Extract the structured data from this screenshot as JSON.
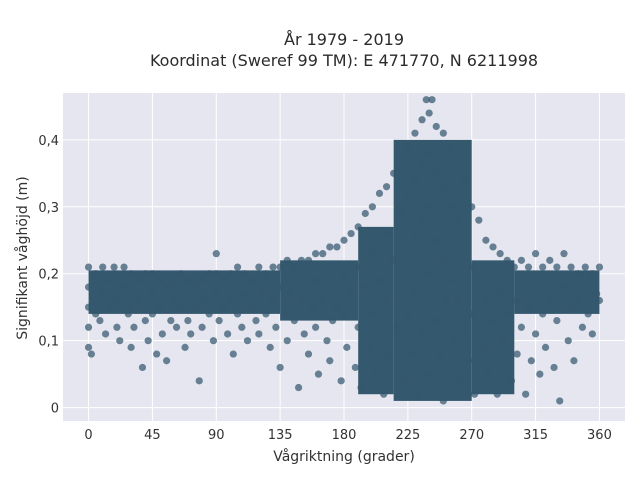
{
  "chart_data": {
    "type": "scatter",
    "title": "År 1979 - 2019",
    "subtitle": "Koordinat (Sweref 99 TM): E 471770, N 6211998",
    "xlabel": "Vågriktning (grader)",
    "ylabel": "Signifikant våghöjd (m)",
    "xlim": [
      -18,
      378
    ],
    "ylim": [
      -0.02,
      0.47
    ],
    "xticks": [
      0,
      45,
      90,
      135,
      180,
      225,
      270,
      315,
      360
    ],
    "xtick_labels": [
      "0",
      "45",
      "90",
      "135",
      "180",
      "225",
      "270",
      "315",
      "360"
    ],
    "yticks": [
      0,
      0.1,
      0.2,
      0.3,
      0.4
    ],
    "ytick_labels": [
      "0",
      "0,1",
      "0,2",
      "0,3",
      "0,4"
    ],
    "grid": true,
    "marker_color": "#34586e",
    "background_color": "#e5e6ef",
    "series": [
      {
        "points": [
          [
            0,
            0.21
          ],
          [
            0,
            0.18
          ],
          [
            0,
            0.15
          ],
          [
            0,
            0.12
          ],
          [
            0,
            0.09
          ],
          [
            2,
            0.08
          ],
          [
            5,
            0.2
          ],
          [
            5,
            0.14
          ],
          [
            8,
            0.13
          ],
          [
            10,
            0.21
          ],
          [
            10,
            0.17
          ],
          [
            12,
            0.11
          ],
          [
            15,
            0.19
          ],
          [
            15,
            0.15
          ],
          [
            18,
            0.21
          ],
          [
            20,
            0.16
          ],
          [
            20,
            0.12
          ],
          [
            22,
            0.1
          ],
          [
            25,
            0.21
          ],
          [
            25,
            0.18
          ],
          [
            28,
            0.14
          ],
          [
            30,
            0.2
          ],
          [
            30,
            0.15
          ],
          [
            30,
            0.09
          ],
          [
            32,
            0.12
          ],
          [
            35,
            0.19
          ],
          [
            35,
            0.16
          ],
          [
            38,
            0.06
          ],
          [
            40,
            0.2
          ],
          [
            40,
            0.13
          ],
          [
            42,
            0.1
          ],
          [
            45,
            0.2
          ],
          [
            45,
            0.17
          ],
          [
            45,
            0.14
          ],
          [
            48,
            0.08
          ],
          [
            50,
            0.19
          ],
          [
            50,
            0.15
          ],
          [
            52,
            0.11
          ],
          [
            55,
            0.18
          ],
          [
            55,
            0.07
          ],
          [
            58,
            0.13
          ],
          [
            60,
            0.19
          ],
          [
            60,
            0.16
          ],
          [
            62,
            0.12
          ],
          [
            65,
            0.2
          ],
          [
            65,
            0.15
          ],
          [
            68,
            0.09
          ],
          [
            70,
            0.19
          ],
          [
            70,
            0.13
          ],
          [
            72,
            0.11
          ],
          [
            75,
            0.18
          ],
          [
            75,
            0.15
          ],
          [
            78,
            0.04
          ],
          [
            80,
            0.19
          ],
          [
            80,
            0.12
          ],
          [
            82,
            0.16
          ],
          [
            85,
            0.2
          ],
          [
            85,
            0.14
          ],
          [
            88,
            0.1
          ],
          [
            90,
            0.23
          ],
          [
            90,
            0.2
          ],
          [
            90,
            0.17
          ],
          [
            92,
            0.13
          ],
          [
            95,
            0.19
          ],
          [
            95,
            0.15
          ],
          [
            98,
            0.11
          ],
          [
            100,
            0.2
          ],
          [
            100,
            0.16
          ],
          [
            102,
            0.08
          ],
          [
            105,
            0.21
          ],
          [
            105,
            0.14
          ],
          [
            108,
            0.12
          ],
          [
            110,
            0.2
          ],
          [
            110,
            0.17
          ],
          [
            112,
            0.1
          ],
          [
            115,
            0.19
          ],
          [
            115,
            0.15
          ],
          [
            118,
            0.13
          ],
          [
            120,
            0.21
          ],
          [
            120,
            0.11
          ],
          [
            122,
            0.17
          ],
          [
            125,
            0.2
          ],
          [
            125,
            0.14
          ],
          [
            128,
            0.09
          ],
          [
            130,
            0.21
          ],
          [
            130,
            0.16
          ],
          [
            132,
            0.12
          ],
          [
            135,
            0.21
          ],
          [
            135,
            0.18
          ],
          [
            135,
            0.06
          ],
          [
            138,
            0.14
          ],
          [
            140,
            0.22
          ],
          [
            140,
            0.1
          ],
          [
            142,
            0.17
          ],
          [
            145,
            0.21
          ],
          [
            145,
            0.13
          ],
          [
            148,
            0.03
          ],
          [
            150,
            0.22
          ],
          [
            150,
            0.16
          ],
          [
            152,
            0.11
          ],
          [
            155,
            0.22
          ],
          [
            155,
            0.08
          ],
          [
            158,
            0.15
          ],
          [
            160,
            0.23
          ],
          [
            160,
            0.19
          ],
          [
            160,
            0.12
          ],
          [
            162,
            0.05
          ],
          [
            165,
            0.23
          ],
          [
            165,
            0.16
          ],
          [
            168,
            0.1
          ],
          [
            170,
            0.24
          ],
          [
            170,
            0.19
          ],
          [
            170,
            0.07
          ],
          [
            172,
            0.13
          ],
          [
            175,
            0.24
          ],
          [
            175,
            0.15
          ],
          [
            178,
            0.04
          ],
          [
            180,
            0.25
          ],
          [
            180,
            0.2
          ],
          [
            180,
            0.14
          ],
          [
            182,
            0.09
          ],
          [
            185,
            0.26
          ],
          [
            185,
            0.17
          ],
          [
            188,
            0.06
          ],
          [
            190,
            0.27
          ],
          [
            190,
            0.21
          ],
          [
            190,
            0.12
          ],
          [
            192,
            0.03
          ],
          [
            195,
            0.29
          ],
          [
            195,
            0.18
          ],
          [
            198,
            0.09
          ],
          [
            200,
            0.3
          ],
          [
            200,
            0.23
          ],
          [
            200,
            0.14
          ],
          [
            202,
            0.05
          ],
          [
            205,
            0.32
          ],
          [
            205,
            0.19
          ],
          [
            208,
            0.02
          ],
          [
            210,
            0.33
          ],
          [
            210,
            0.26
          ],
          [
            210,
            0.16
          ],
          [
            212,
            0.08
          ],
          [
            215,
            0.35
          ],
          [
            215,
            0.22
          ],
          [
            218,
            0.12
          ],
          [
            220,
            0.37
          ],
          [
            220,
            0.29
          ],
          [
            220,
            0.18
          ],
          [
            222,
            0.04
          ],
          [
            225,
            0.39
          ],
          [
            225,
            0.32
          ],
          [
            225,
            0.24
          ],
          [
            225,
            0.14
          ],
          [
            228,
            0.08
          ],
          [
            230,
            0.41
          ],
          [
            230,
            0.34
          ],
          [
            230,
            0.26
          ],
          [
            230,
            0.17
          ],
          [
            232,
            0.02
          ],
          [
            235,
            0.43
          ],
          [
            235,
            0.36
          ],
          [
            235,
            0.28
          ],
          [
            235,
            0.11
          ],
          [
            238,
            0.46
          ],
          [
            240,
            0.44
          ],
          [
            240,
            0.38
          ],
          [
            240,
            0.3
          ],
          [
            240,
            0.2
          ],
          [
            240,
            0.05
          ],
          [
            242,
            0.46
          ],
          [
            245,
            0.42
          ],
          [
            245,
            0.35
          ],
          [
            245,
            0.25
          ],
          [
            245,
            0.13
          ],
          [
            248,
            0.08
          ],
          [
            250,
            0.41
          ],
          [
            250,
            0.33
          ],
          [
            250,
            0.22
          ],
          [
            250,
            0.01
          ],
          [
            252,
            0.16
          ],
          [
            255,
            0.39
          ],
          [
            255,
            0.3
          ],
          [
            255,
            0.19
          ],
          [
            258,
            0.1
          ],
          [
            260,
            0.37
          ],
          [
            260,
            0.28
          ],
          [
            260,
            0.16
          ],
          [
            262,
            0.04
          ],
          [
            265,
            0.34
          ],
          [
            265,
            0.24
          ],
          [
            265,
            0.12
          ],
          [
            268,
            0.07
          ],
          [
            270,
            0.3
          ],
          [
            270,
            0.21
          ],
          [
            270,
            0.14
          ],
          [
            272,
            0.02
          ],
          [
            275,
            0.28
          ],
          [
            275,
            0.19
          ],
          [
            278,
            0.09
          ],
          [
            280,
            0.25
          ],
          [
            280,
            0.16
          ],
          [
            282,
            0.05
          ],
          [
            285,
            0.24
          ],
          [
            285,
            0.13
          ],
          [
            288,
            0.02
          ],
          [
            290,
            0.23
          ],
          [
            290,
            0.17
          ],
          [
            292,
            0.1
          ],
          [
            295,
            0.22
          ],
          [
            295,
            0.14
          ],
          [
            298,
            0.04
          ],
          [
            300,
            0.21
          ],
          [
            300,
            0.16
          ],
          [
            302,
            0.08
          ],
          [
            305,
            0.22
          ],
          [
            305,
            0.12
          ],
          [
            308,
            0.02
          ],
          [
            310,
            0.21
          ],
          [
            310,
            0.15
          ],
          [
            312,
            0.07
          ],
          [
            315,
            0.23
          ],
          [
            315,
            0.18
          ],
          [
            315,
            0.11
          ],
          [
            318,
            0.05
          ],
          [
            320,
            0.21
          ],
          [
            320,
            0.14
          ],
          [
            322,
            0.09
          ],
          [
            325,
            0.22
          ],
          [
            325,
            0.16
          ],
          [
            328,
            0.06
          ],
          [
            330,
            0.21
          ],
          [
            330,
            0.13
          ],
          [
            332,
            0.01
          ],
          [
            335,
            0.23
          ],
          [
            335,
            0.18
          ],
          [
            338,
            0.1
          ],
          [
            340,
            0.21
          ],
          [
            340,
            0.15
          ],
          [
            342,
            0.07
          ],
          [
            345,
            0.2
          ],
          [
            345,
            0.16
          ],
          [
            348,
            0.12
          ],
          [
            350,
            0.21
          ],
          [
            350,
            0.18
          ],
          [
            352,
            0.14
          ],
          [
            355,
            0.2
          ],
          [
            355,
            0.11
          ],
          [
            358,
            0.17
          ],
          [
            360,
            0.21
          ],
          [
            360,
            0.16
          ]
        ]
      }
    ],
    "bands": [
      {
        "x": [
          0,
          135
        ],
        "low": 0.14,
        "high": 0.205
      },
      {
        "x": [
          135,
          190
        ],
        "low": 0.13,
        "high": 0.22
      },
      {
        "x": [
          190,
          215
        ],
        "low": 0.02,
        "high": 0.27
      },
      {
        "x": [
          215,
          270
        ],
        "low": 0.01,
        "high": 0.4
      },
      {
        "x": [
          270,
          300
        ],
        "low": 0.02,
        "high": 0.22
      },
      {
        "x": [
          300,
          360
        ],
        "low": 0.14,
        "high": 0.205
      }
    ]
  }
}
